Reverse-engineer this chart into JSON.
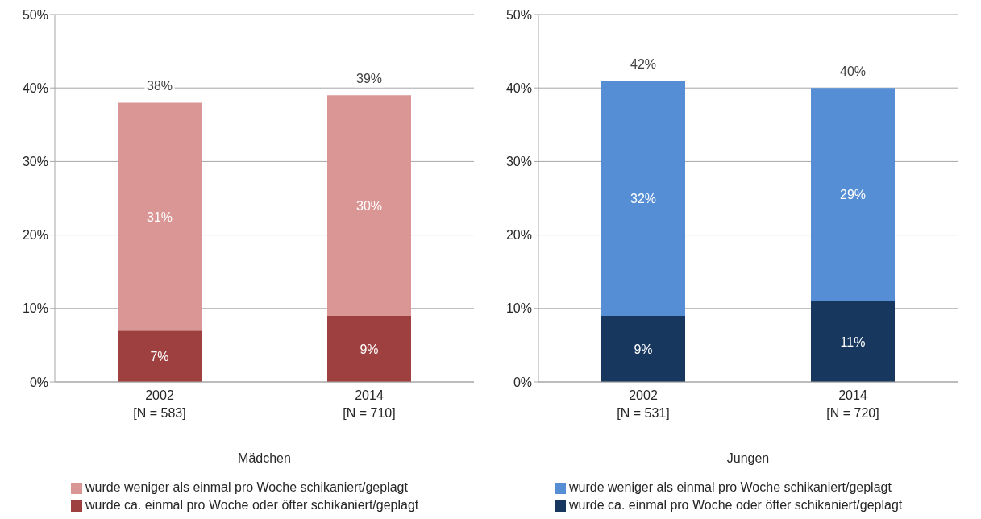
{
  "chart_data": [
    {
      "type": "bar",
      "stacked": true,
      "xlabel": "Mädchen",
      "categories": [
        "2002\n[N = 583]",
        "2014\n[N = 710]"
      ],
      "series": [
        {
          "name": "wurde ca. einmal pro Woche oder öfter schikaniert/geplagt",
          "color": "#9e403f",
          "values": [
            7,
            9
          ],
          "value_labels": [
            "7%",
            "9%"
          ]
        },
        {
          "name": "wurde weniger als einmal pro Woche schikaniert/geplagt",
          "color": "#d99694",
          "values": [
            31,
            30
          ],
          "value_labels": [
            "31%",
            "30%"
          ]
        }
      ],
      "totals": [
        "38%",
        "39%"
      ],
      "ylim": [
        0,
        50
      ],
      "yticks": [
        {
          "value": 0,
          "label": "0%"
        },
        {
          "value": 10,
          "label": "10%"
        },
        {
          "value": 20,
          "label": "20%"
        },
        {
          "value": 30,
          "label": "30%"
        },
        {
          "value": 40,
          "label": "40%"
        },
        {
          "value": 50,
          "label": "50%"
        }
      ],
      "grid": "y",
      "legend": "bottom"
    },
    {
      "type": "bar",
      "stacked": true,
      "xlabel": "Jungen",
      "categories": [
        "2002\n[N = 531]",
        "2014\n[N = 720]"
      ],
      "series": [
        {
          "name": "wurde ca. einmal pro Woche oder öfter schikaniert/geplagt",
          "color": "#17375e",
          "values": [
            9,
            11
          ],
          "value_labels": [
            "9%",
            "11%"
          ]
        },
        {
          "name": "wurde weniger als einmal pro Woche schikaniert/geplagt",
          "color": "#558ed5",
          "values": [
            32,
            29
          ],
          "value_labels": [
            "32%",
            "29%"
          ]
        }
      ],
      "totals": [
        "42%",
        "40%"
      ],
      "ylim": [
        0,
        50
      ],
      "yticks": [
        {
          "value": 0,
          "label": "0%"
        },
        {
          "value": 10,
          "label": "10%"
        },
        {
          "value": 20,
          "label": "20%"
        },
        {
          "value": 30,
          "label": "30%"
        },
        {
          "value": 40,
          "label": "40%"
        },
        {
          "value": 50,
          "label": "50%"
        }
      ],
      "grid": "y",
      "legend": "bottom"
    }
  ]
}
